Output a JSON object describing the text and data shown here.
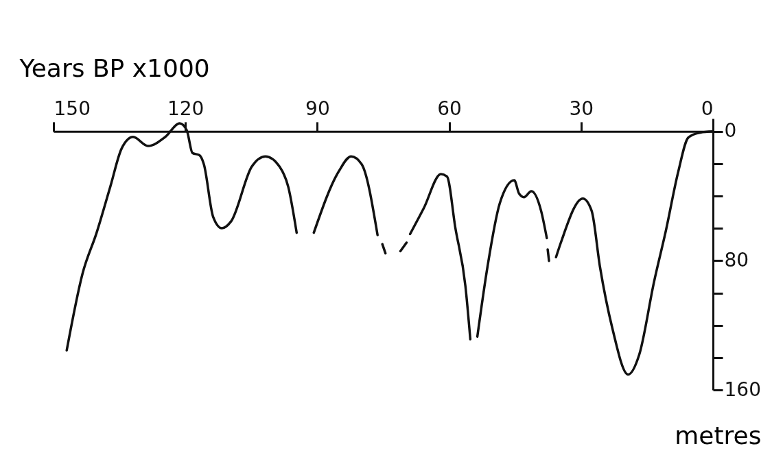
{
  "chart_data": {
    "type": "line",
    "xlabel": "Years  BP x1000",
    "ylabel": "metres",
    "x": [
      147,
      143.4,
      140.2,
      137.1,
      134.5,
      131.9,
      128.5,
      124.6,
      121.3,
      119.7,
      118.4,
      116.8,
      115.8,
      113.7,
      111.7,
      109.6,
      104.9,
      101.8,
      98.6,
      96.6,
      94.7,
      92.7,
      90.8,
      85.1,
      82.3,
      79.9,
      76.3,
      75.7,
      75.2,
      74.5,
      72.8,
      71.1,
      69.7,
      69.3,
      68.9,
      65.8,
      61.9,
      60.5,
      58.6,
      56.3,
      55.2,
      54.4,
      53.6,
      51.3,
      48.5,
      45.2,
      44.1,
      43,
      41.3,
      39.1,
      37.8,
      37.7,
      37.6,
      37.3,
      36.5,
      35.7,
      34.6,
      29.6,
      27.6,
      25.7,
      22.9,
      19.3,
      16.8,
      13.4,
      10.7,
      7.9,
      5.6,
      2.9,
      0
    ],
    "series": [
      {
        "color": "#111111",
        "values": [
          135.5,
          88,
          62.7,
          34.3,
          10.5,
          3.4,
          9,
          3.4,
          -5,
          -0.8,
          13.3,
          14.7,
          20.3,
          52.8,
          59.9,
          55.6,
          21.7,
          15.4,
          21.7,
          34.4,
          62.7,
          null,
          62.7,
          24.6,
          15.4,
          20.3,
          64.1,
          null,
          69.8,
          75.4,
          null,
          74.1,
          68.8,
          null,
          63.5,
          47.6,
          26.4,
          27.9,
          59.7,
          96,
          128.6,
          null,
          127,
          83.9,
          44.5,
          30.2,
          38.5,
          40.7,
          37,
          49.1,
          66,
          null,
          73,
          80.1,
          null,
          77.8,
          68.8,
          41.5,
          49.1,
          83.9,
          121.7,
          150.5,
          138.4,
          93,
          61.2,
          24.9,
          3.7,
          0.7,
          0
        ]
      }
    ],
    "xlim": [
      150,
      0
    ],
    "xticks": [
      150,
      120,
      90,
      60,
      30,
      0
    ],
    "ylim": [
      160,
      -8
    ],
    "yticks": [
      0,
      {
        "value": 20,
        "label": null
      },
      {
        "value": 40,
        "label": null
      },
      {
        "value": 60,
        "label": null
      },
      80,
      {
        "value": 100,
        "label": null
      },
      {
        "value": 120,
        "label": null
      },
      {
        "value": 140,
        "label": null
      },
      160
    ],
    "grid": false,
    "line_style": "solid"
  }
}
